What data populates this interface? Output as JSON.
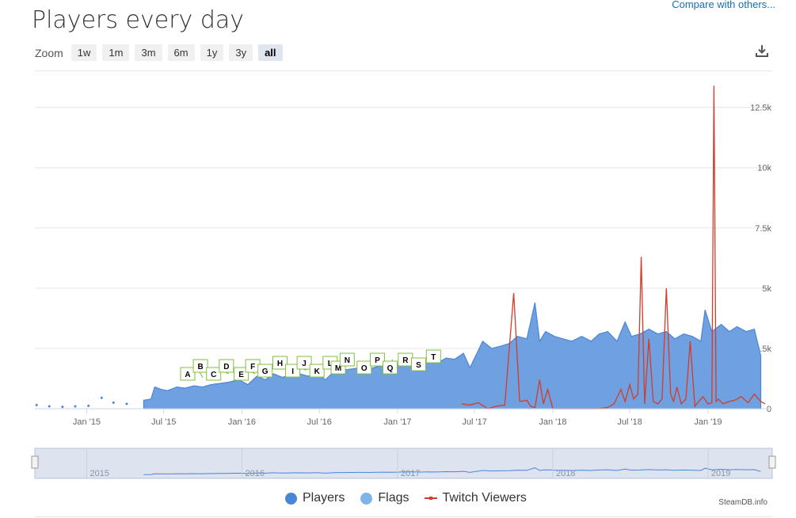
{
  "header": {
    "title": "Players every day",
    "compare_link": "Compare with others..."
  },
  "zoom": {
    "label": "Zoom",
    "buttons": [
      "1w",
      "1m",
      "3m",
      "6m",
      "1y",
      "3y",
      "all"
    ],
    "active": "all"
  },
  "toolbar": {
    "download_icon": "download-icon"
  },
  "colors": {
    "players": "#4a86d8",
    "players_fill": "#6fa0e0",
    "flags": "#7fb4ea",
    "twitch": "#d23c2a",
    "flag_border": "#7fbf3f",
    "navigator_bg": "#dde4f0",
    "navigator_line": "#4a86d8"
  },
  "legend": {
    "players": "Players",
    "flags": "Flags",
    "twitch": "Twitch Viewers"
  },
  "credit": "SteamDB.info",
  "chart_data": {
    "type": "area",
    "title": "Players every day",
    "x_range": [
      "2014-09-01",
      "2019-06-01"
    ],
    "y_range": [
      0,
      14000
    ],
    "y_ticks": [
      0,
      2500,
      5000,
      7500,
      10000,
      12500
    ],
    "y_tick_labels": [
      "0",
      "2.5k",
      "5k",
      "7.5k",
      "10k",
      "12.5k"
    ],
    "x_tick_labels": [
      "Jan '15",
      "Jul '15",
      "Jan '16",
      "Jul '16",
      "Jan '17",
      "Jul '17",
      "Jan '18",
      "Jul '18",
      "Jan '19"
    ],
    "x_tick_dates": [
      "2015-01-01",
      "2015-07-01",
      "2016-01-01",
      "2016-07-01",
      "2017-01-01",
      "2017-07-01",
      "2018-01-01",
      "2018-07-01",
      "2019-01-01"
    ],
    "grid": true,
    "legend_position": "bottom",
    "series": [
      {
        "name": "Players",
        "type": "area",
        "x": [
          "2015-05-15",
          "2015-06-01",
          "2015-06-10",
          "2015-06-25",
          "2015-07-10",
          "2015-08-01",
          "2015-08-20",
          "2015-09-10",
          "2015-10-01",
          "2015-10-20",
          "2015-11-10",
          "2015-12-01",
          "2015-12-25",
          "2016-01-15",
          "2016-02-05",
          "2016-02-25",
          "2016-03-15",
          "2016-04-05",
          "2016-04-25",
          "2016-05-15",
          "2016-06-05",
          "2016-06-25",
          "2016-07-15",
          "2016-08-05",
          "2016-08-25",
          "2016-09-15",
          "2016-10-05",
          "2016-10-25",
          "2016-11-15",
          "2016-12-05",
          "2016-12-25",
          "2017-01-15",
          "2017-02-05",
          "2017-02-25",
          "2017-03-15",
          "2017-04-05",
          "2017-04-25",
          "2017-05-15",
          "2017-06-05",
          "2017-06-20",
          "2017-07-01",
          "2017-07-20",
          "2017-08-10",
          "2017-09-01",
          "2017-09-20",
          "2017-10-10",
          "2017-11-01",
          "2017-11-20",
          "2017-12-01",
          "2017-12-15",
          "2018-01-05",
          "2018-01-25",
          "2018-02-15",
          "2018-03-10",
          "2018-04-01",
          "2018-04-20",
          "2018-05-10",
          "2018-06-01",
          "2018-06-20",
          "2018-07-05",
          "2018-07-25",
          "2018-08-15",
          "2018-09-05",
          "2018-09-25",
          "2018-10-15",
          "2018-11-05",
          "2018-11-25",
          "2018-12-15",
          "2018-12-25",
          "2019-01-10",
          "2019-02-01",
          "2019-02-20",
          "2019-03-10",
          "2019-04-01",
          "2019-04-20",
          "2019-05-05"
        ],
        "values": [
          350,
          400,
          900,
          800,
          750,
          900,
          850,
          950,
          900,
          1000,
          1050,
          1100,
          1200,
          1000,
          1350,
          1200,
          1450,
          1300,
          1400,
          1450,
          1350,
          1500,
          1200,
          1550,
          1600,
          1650,
          1700,
          1650,
          1750,
          1800,
          1750,
          1900,
          1950,
          1850,
          2000,
          1900,
          2100,
          2050,
          2300,
          1700,
          2100,
          2800,
          2500,
          2600,
          2700,
          3000,
          2900,
          4400,
          2800,
          3200,
          3000,
          2900,
          2800,
          3000,
          2800,
          3100,
          3200,
          2800,
          3600,
          3000,
          3100,
          3300,
          3100,
          3200,
          2900,
          3100,
          3000,
          2800,
          4100,
          3200,
          3500,
          3200,
          3400,
          3200,
          3300,
          2200
        ]
      },
      {
        "name": "Twitch Viewers",
        "type": "line",
        "x": [
          "2017-06-01",
          "2017-06-20",
          "2017-07-10",
          "2017-08-01",
          "2017-08-20",
          "2017-09-10",
          "2017-10-01",
          "2017-10-15",
          "2017-11-01",
          "2017-11-10",
          "2017-11-20",
          "2017-12-01",
          "2017-12-10",
          "2017-12-20",
          "2018-01-01",
          "2018-01-10",
          "2018-03-15",
          "2018-04-15",
          "2018-05-10",
          "2018-05-25",
          "2018-06-10",
          "2018-06-20",
          "2018-07-01",
          "2018-07-10",
          "2018-07-20",
          "2018-07-28",
          "2018-08-05",
          "2018-08-15",
          "2018-08-25",
          "2018-09-05",
          "2018-09-15",
          "2018-09-25",
          "2018-10-05",
          "2018-10-12",
          "2018-10-20",
          "2018-10-30",
          "2018-11-10",
          "2018-11-20",
          "2018-12-01",
          "2018-12-10",
          "2018-12-20",
          "2019-01-01",
          "2019-01-10",
          "2019-01-15",
          "2019-01-20",
          "2019-01-25",
          "2019-02-05",
          "2019-02-20",
          "2019-03-05",
          "2019-03-20",
          "2019-04-05",
          "2019-04-20",
          "2019-05-05",
          "2019-05-15"
        ],
        "values": [
          200,
          150,
          250,
          0,
          100,
          150,
          4800,
          300,
          350,
          100,
          50,
          1200,
          200,
          800,
          0,
          0,
          0,
          0,
          50,
          200,
          800,
          300,
          1000,
          400,
          600,
          6300,
          200,
          2900,
          300,
          200,
          400,
          5000,
          600,
          300,
          900,
          200,
          400,
          2800,
          100,
          300,
          500,
          200,
          250,
          13400,
          300,
          400,
          200,
          300,
          350,
          500,
          250,
          600,
          300,
          200
        ]
      },
      {
        "name": "Flags",
        "type": "flags",
        "labels": [
          "A",
          "B",
          "C",
          "D",
          "E",
          "F",
          "G",
          "H",
          "I",
          "J",
          "K",
          "L",
          "M",
          "N",
          "O",
          "P",
          "Q",
          "R",
          "S",
          "T"
        ],
        "x": [
          "2015-09-01",
          "2015-10-01",
          "2015-11-01",
          "2015-12-01",
          "2016-01-05",
          "2016-02-01",
          "2016-03-01",
          "2016-04-05",
          "2016-05-05",
          "2016-06-01",
          "2016-07-01",
          "2016-08-01",
          "2016-08-20",
          "2016-09-10",
          "2016-10-20",
          "2016-11-20",
          "2016-12-20",
          "2017-01-25",
          "2017-02-25",
          "2017-04-01"
        ],
        "values": [
          1200,
          1300,
          1400,
          1450,
          1500,
          1450,
          1650,
          1750,
          1650,
          1600,
          1800,
          1750,
          1800,
          1850,
          1900,
          1950,
          2050,
          2100,
          2100,
          2300
        ]
      }
    ],
    "early_dots": {
      "name": "Players",
      "x": [
        "2014-09-05",
        "2014-10-05",
        "2014-11-05",
        "2014-12-05",
        "2015-01-05",
        "2015-02-05",
        "2015-03-05",
        "2015-04-05"
      ],
      "values": [
        150,
        100,
        80,
        100,
        120,
        450,
        250,
        200
      ]
    },
    "navigator_labels": [
      "2015",
      "2016",
      "2017",
      "2018",
      "2019"
    ],
    "navigator_dates": [
      "2015-01-01",
      "2016-01-01",
      "2017-01-01",
      "2018-01-01",
      "2019-01-01"
    ]
  }
}
